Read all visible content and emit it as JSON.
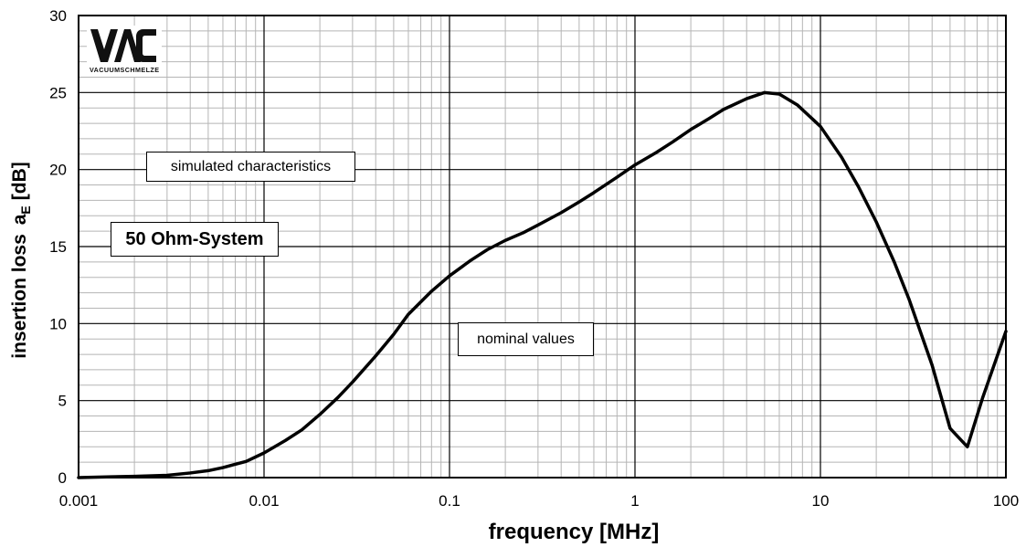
{
  "chart_data": {
    "type": "line",
    "x_scale": "log",
    "xlim": [
      0.001,
      100
    ],
    "ylim": [
      0,
      30
    ],
    "grid": true,
    "xlabel": "frequency [MHz]",
    "ylabel_main": "insertion loss",
    "ylabel_symbol": "a",
    "ylabel_subscript": "E",
    "ylabel_unit": "[dB]",
    "x_ticks": [
      {
        "value": 0.001,
        "label": "0.001"
      },
      {
        "value": 0.01,
        "label": "0.01"
      },
      {
        "value": 0.1,
        "label": "0.1"
      },
      {
        "value": 1,
        "label": "1"
      },
      {
        "value": 10,
        "label": "10"
      },
      {
        "value": 100,
        "label": "100"
      }
    ],
    "y_ticks": [
      {
        "value": 0,
        "label": "0"
      },
      {
        "value": 5,
        "label": "5"
      },
      {
        "value": 10,
        "label": "10"
      },
      {
        "value": 15,
        "label": "15"
      },
      {
        "value": 20,
        "label": "20"
      },
      {
        "value": 25,
        "label": "25"
      },
      {
        "value": 30,
        "label": "30"
      }
    ],
    "series": [
      {
        "color": "#000000",
        "points": [
          [
            0.001,
            0.0
          ],
          [
            0.0015,
            0.05
          ],
          [
            0.002,
            0.08
          ],
          [
            0.003,
            0.15
          ],
          [
            0.004,
            0.3
          ],
          [
            0.005,
            0.45
          ],
          [
            0.006,
            0.65
          ],
          [
            0.008,
            1.05
          ],
          [
            0.01,
            1.6
          ],
          [
            0.013,
            2.4
          ],
          [
            0.016,
            3.1
          ],
          [
            0.02,
            4.1
          ],
          [
            0.025,
            5.2
          ],
          [
            0.03,
            6.2
          ],
          [
            0.04,
            7.9
          ],
          [
            0.05,
            9.3
          ],
          [
            0.06,
            10.6
          ],
          [
            0.08,
            12.1
          ],
          [
            0.1,
            13.1
          ],
          [
            0.13,
            14.1
          ],
          [
            0.16,
            14.8
          ],
          [
            0.2,
            15.4
          ],
          [
            0.25,
            15.9
          ],
          [
            0.3,
            16.4
          ],
          [
            0.4,
            17.2
          ],
          [
            0.5,
            17.9
          ],
          [
            0.6,
            18.5
          ],
          [
            0.8,
            19.5
          ],
          [
            1.0,
            20.3
          ],
          [
            1.3,
            21.1
          ],
          [
            1.6,
            21.8
          ],
          [
            2.0,
            22.6
          ],
          [
            2.5,
            23.3
          ],
          [
            3.0,
            23.9
          ],
          [
            4.0,
            24.6
          ],
          [
            5.0,
            25.0
          ],
          [
            6.0,
            24.9
          ],
          [
            7.5,
            24.2
          ],
          [
            10,
            22.8
          ],
          [
            13,
            20.8
          ],
          [
            16,
            18.9
          ],
          [
            20,
            16.6
          ],
          [
            25,
            14.0
          ],
          [
            30,
            11.6
          ],
          [
            40,
            7.3
          ],
          [
            50,
            3.2
          ],
          [
            62,
            2.0
          ],
          [
            75,
            5.2
          ],
          [
            100,
            9.5
          ]
        ]
      }
    ],
    "annotations": [
      {
        "text": "simulated characteristics",
        "emphasis": "normal"
      },
      {
        "text": "50 Ohm-System",
        "emphasis": "large"
      },
      {
        "text": "nominal values",
        "emphasis": "normal"
      }
    ]
  },
  "logo": {
    "letters": "VAC",
    "subtitle": "VACUUMSCHMELZE"
  }
}
